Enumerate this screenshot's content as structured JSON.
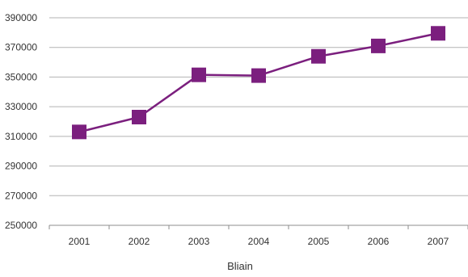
{
  "chart_data": {
    "type": "line",
    "title": "",
    "xlabel": "Bliain",
    "ylabel": "",
    "categories": [
      "2001",
      "2002",
      "2003",
      "2004",
      "2005",
      "2006",
      "2007"
    ],
    "series": [
      {
        "values": [
          313000,
          323000,
          351500,
          351000,
          364000,
          371000,
          379500
        ],
        "color": "#7b1f7e",
        "marker": "square"
      }
    ],
    "ylim": [
      250000,
      390000
    ],
    "yticks": [
      "250000",
      "270000",
      "290000",
      "310000",
      "330000",
      "350000",
      "370000",
      "390000"
    ],
    "grid": "horizontal",
    "legend": "none",
    "colors": {
      "series": "#7b1f7e",
      "grid": "#b3b3b3",
      "axis": "#8c8c8c",
      "text": "#333333"
    }
  }
}
